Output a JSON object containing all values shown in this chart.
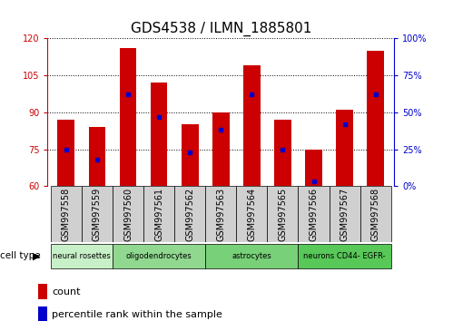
{
  "title": "GDS4538 / ILMN_1885801",
  "samples": [
    "GSM997558",
    "GSM997559",
    "GSM997560",
    "GSM997561",
    "GSM997562",
    "GSM997563",
    "GSM997564",
    "GSM997565",
    "GSM997566",
    "GSM997567",
    "GSM997568"
  ],
  "bar_values": [
    87,
    84,
    116,
    102,
    85,
    90,
    109,
    87,
    75,
    91,
    115
  ],
  "percentile_values": [
    25,
    18,
    62,
    47,
    23,
    38,
    62,
    25,
    3,
    42,
    62
  ],
  "cell_types": [
    {
      "label": "neural rosettes",
      "start": 0,
      "end": 2,
      "color": "#c8f0c8"
    },
    {
      "label": "oligodendrocytes",
      "start": 2,
      "end": 5,
      "color": "#90d890"
    },
    {
      "label": "astrocytes",
      "start": 5,
      "end": 8,
      "color": "#78d078"
    },
    {
      "label": "neurons CD44- EGFR-",
      "start": 8,
      "end": 11,
      "color": "#58c858"
    }
  ],
  "ylim_left": [
    60,
    120
  ],
  "yticks_left": [
    60,
    75,
    90,
    105,
    120
  ],
  "ylim_right": [
    0,
    100
  ],
  "yticks_right": [
    0,
    25,
    50,
    75,
    100
  ],
  "bar_color": "#cc0000",
  "percentile_color": "#0000cc",
  "bar_width": 0.55,
  "grid_color": "#000000",
  "left_axis_color": "#cc0000",
  "right_axis_color": "#0000cc",
  "title_fontsize": 11,
  "tick_fontsize": 7,
  "label_fontsize": 7,
  "legend_fontsize": 8,
  "cell_type_label_color": "#000000",
  "xtick_bg_color": "#d0d0d0",
  "cell_type_row_colors": [
    "#c8f0c8",
    "#90d890",
    "#78d078",
    "#58c858"
  ]
}
